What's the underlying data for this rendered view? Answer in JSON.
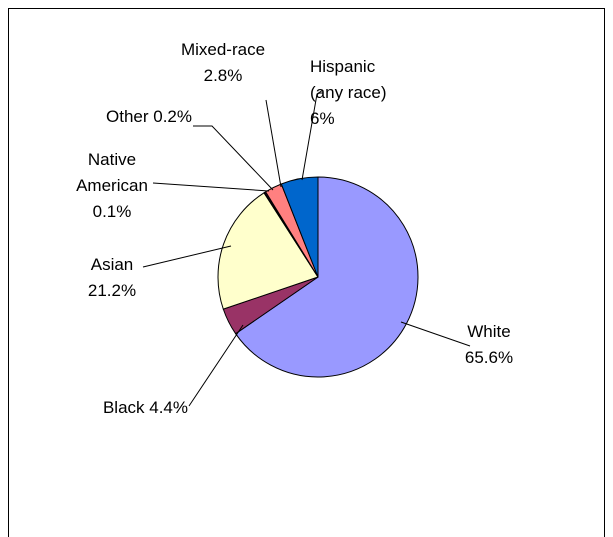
{
  "chart_data": {
    "type": "pie",
    "title": "",
    "slices": [
      {
        "label": "White",
        "value": 65.6,
        "label_lines": [
          "White",
          "65.6%"
        ],
        "color": "#9999ff"
      },
      {
        "label": "Black",
        "value": 4.4,
        "label_lines": [
          "Black 4.4%"
        ],
        "color": "#993366"
      },
      {
        "label": "Asian",
        "value": 21.2,
        "label_lines": [
          "Asian",
          "21.2%"
        ],
        "color": "#ffffcc"
      },
      {
        "label": "Native American",
        "value": 0.1,
        "label_lines": [
          "Native",
          "American",
          "0.1%"
        ],
        "color": "#ccffff"
      },
      {
        "label": "Other",
        "value": 0.2,
        "label_lines": [
          "Other 0.2%"
        ],
        "color": "#660066"
      },
      {
        "label": "Mixed-race",
        "value": 2.8,
        "label_lines": [
          "Mixed-race",
          "2.8%"
        ],
        "color": "#ff8080"
      },
      {
        "label": "Hispanic (any race)",
        "value": 6,
        "label_lines": [
          "Hispanic",
          "(any race)",
          "6%"
        ],
        "color": "#0066cc"
      }
    ],
    "legend": "none",
    "data_labels": "outside with leader lines"
  }
}
